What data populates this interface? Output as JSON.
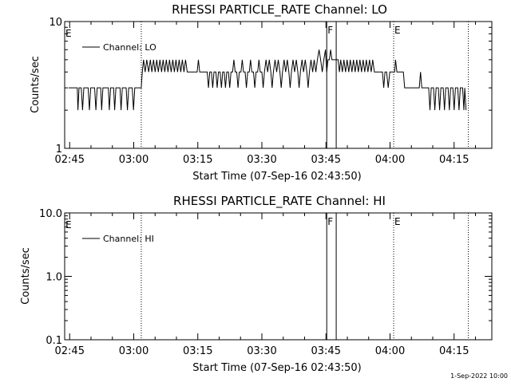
{
  "colors": {
    "background": "#ffffff",
    "foreground": "#000000"
  },
  "footer": {
    "date": "1-Sep-2022 10:00"
  },
  "chart_data": [
    {
      "type": "line",
      "title": "RHESSI PARTICLE_RATE Channel: LO",
      "xlabel": "Start Time (07-Sep-16 02:43:50)",
      "ylabel": "Counts/sec",
      "y_scale": "log",
      "ylim": [
        1,
        10
      ],
      "y_ticks": [
        {
          "value": 1,
          "label": "1"
        },
        {
          "value": 10,
          "label": "10"
        }
      ],
      "xlim": [
        "02:43:50",
        "04:23:50"
      ],
      "x_ticks": [
        "02:45",
        "03:00",
        "03:15",
        "03:30",
        "03:45",
        "04:00",
        "04:15"
      ],
      "legend": {
        "position": "top-left",
        "label": "Channel: LO"
      },
      "series": [
        {
          "name": "Channel: LO",
          "points": [
            [
              "02:44:44",
              3
            ],
            [
              "02:46:47",
              3
            ],
            [
              "02:46:56",
              2
            ],
            [
              "02:47:12",
              3
            ],
            [
              "02:47:43",
              3
            ],
            [
              "02:48:01",
              2
            ],
            [
              "02:48:19",
              3
            ],
            [
              "02:49:20",
              3
            ],
            [
              "02:49:38",
              2
            ],
            [
              "02:49:56",
              3
            ],
            [
              "02:50:51",
              3
            ],
            [
              "02:51:09",
              2
            ],
            [
              "02:51:27",
              3
            ],
            [
              "02:52:16",
              3
            ],
            [
              "02:52:29",
              2
            ],
            [
              "02:52:47",
              3
            ],
            [
              "02:54:03",
              3
            ],
            [
              "02:54:17",
              2
            ],
            [
              "02:54:35",
              3
            ],
            [
              "02:55:18",
              3
            ],
            [
              "02:55:32",
              2
            ],
            [
              "02:55:50",
              3
            ],
            [
              "02:56:47",
              3
            ],
            [
              "02:57:02",
              2
            ],
            [
              "02:57:20",
              3
            ],
            [
              "02:58:13",
              3
            ],
            [
              "02:58:31",
              2
            ],
            [
              "02:58:49",
              3
            ],
            [
              "02:59:39",
              3
            ],
            [
              "02:59:57",
              2
            ],
            [
              "03:00:15",
              3
            ],
            [
              "03:01:46",
              3
            ],
            [
              "03:02:00",
              4
            ],
            [
              "03:02:18",
              5
            ],
            [
              "03:02:40",
              4
            ],
            [
              "03:03:03",
              5
            ],
            [
              "03:03:30",
              4
            ],
            [
              "03:03:53",
              5
            ],
            [
              "03:04:15",
              4
            ],
            [
              "03:04:38",
              5
            ],
            [
              "03:05:01",
              4
            ],
            [
              "03:05:23",
              5
            ],
            [
              "03:05:46",
              4
            ],
            [
              "03:06:08",
              5
            ],
            [
              "03:06:31",
              4
            ],
            [
              "03:06:53",
              5
            ],
            [
              "03:07:16",
              4
            ],
            [
              "03:07:38",
              5
            ],
            [
              "03:08:01",
              4
            ],
            [
              "03:08:23",
              5
            ],
            [
              "03:08:46",
              4
            ],
            [
              "03:09:08",
              5
            ],
            [
              "03:09:31",
              4
            ],
            [
              "03:09:53",
              5
            ],
            [
              "03:10:16",
              4
            ],
            [
              "03:10:38",
              5
            ],
            [
              "03:11:01",
              4
            ],
            [
              "03:11:23",
              5
            ],
            [
              "03:11:46",
              4
            ],
            [
              "03:12:08",
              5
            ],
            [
              "03:12:31",
              4
            ],
            [
              "03:12:53",
              4
            ],
            [
              "03:14:51",
              4
            ],
            [
              "03:15:09",
              5
            ],
            [
              "03:15:27",
              4
            ],
            [
              "03:17:12",
              4
            ],
            [
              "03:17:30",
              3
            ],
            [
              "03:17:48",
              4
            ],
            [
              "03:18:11",
              4
            ],
            [
              "03:18:29",
              3
            ],
            [
              "03:18:47",
              4
            ],
            [
              "03:19:14",
              4
            ],
            [
              "03:19:32",
              3
            ],
            [
              "03:19:50",
              4
            ],
            [
              "03:20:13",
              4
            ],
            [
              "03:20:31",
              3
            ],
            [
              "03:20:49",
              4
            ],
            [
              "03:21:11",
              4
            ],
            [
              "03:21:29",
              3
            ],
            [
              "03:21:47",
              4
            ],
            [
              "03:22:10",
              4
            ],
            [
              "03:22:28",
              3
            ],
            [
              "03:22:46",
              4
            ],
            [
              "03:23:09",
              4
            ],
            [
              "03:23:27",
              5
            ],
            [
              "03:23:45",
              4
            ],
            [
              "03:24:07",
              4
            ],
            [
              "03:24:25",
              3
            ],
            [
              "03:24:43",
              4
            ],
            [
              "03:25:06",
              4
            ],
            [
              "03:25:24",
              5
            ],
            [
              "03:25:42",
              4
            ],
            [
              "03:26:05",
              4
            ],
            [
              "03:26:23",
              3
            ],
            [
              "03:26:41",
              4
            ],
            [
              "03:27:03",
              4
            ],
            [
              "03:27:21",
              5
            ],
            [
              "03:27:39",
              4
            ],
            [
              "03:28:02",
              4
            ],
            [
              "03:28:20",
              3
            ],
            [
              "03:28:38",
              4
            ],
            [
              "03:29:01",
              4
            ],
            [
              "03:29:19",
              5
            ],
            [
              "03:29:37",
              4
            ],
            [
              "03:30:00",
              4
            ],
            [
              "03:30:18",
              3
            ],
            [
              "03:30:36",
              4
            ],
            [
              "03:30:58",
              5
            ],
            [
              "03:31:21",
              4
            ],
            [
              "03:31:44",
              5
            ],
            [
              "03:32:06",
              4
            ],
            [
              "03:32:24",
              3
            ],
            [
              "03:32:42",
              4
            ],
            [
              "03:33:05",
              5
            ],
            [
              "03:33:28",
              4
            ],
            [
              "03:33:50",
              5
            ],
            [
              "03:34:13",
              4
            ],
            [
              "03:34:31",
              3
            ],
            [
              "03:34:49",
              4
            ],
            [
              "03:35:12",
              5
            ],
            [
              "03:35:34",
              4
            ],
            [
              "03:35:57",
              5
            ],
            [
              "03:36:19",
              4
            ],
            [
              "03:36:37",
              3
            ],
            [
              "03:36:55",
              4
            ],
            [
              "03:37:18",
              5
            ],
            [
              "03:37:40",
              4
            ],
            [
              "03:38:03",
              5
            ],
            [
              "03:38:25",
              4
            ],
            [
              "03:38:43",
              3
            ],
            [
              "03:39:01",
              4
            ],
            [
              "03:39:24",
              5
            ],
            [
              "03:39:46",
              4
            ],
            [
              "03:40:09",
              5
            ],
            [
              "03:40:31",
              4
            ],
            [
              "03:40:49",
              3
            ],
            [
              "03:41:07",
              4
            ],
            [
              "03:41:30",
              5
            ],
            [
              "03:41:53",
              4
            ],
            [
              "03:42:15",
              5
            ],
            [
              "03:42:38",
              4
            ],
            [
              "03:43:00",
              5
            ],
            [
              "03:43:23",
              6
            ],
            [
              "03:43:45",
              5
            ],
            [
              "03:44:08",
              4
            ],
            [
              "03:44:30",
              5
            ],
            [
              "03:44:53",
              6
            ],
            [
              "03:45:11",
              4
            ],
            [
              "03:45:29",
              5
            ],
            [
              "03:45:48",
              5
            ],
            [
              "03:46:06",
              6
            ],
            [
              "03:46:24",
              5
            ],
            [
              "03:47:51",
              5
            ],
            [
              "03:48:09",
              4
            ],
            [
              "03:48:27",
              5
            ],
            [
              "03:48:50",
              4
            ],
            [
              "03:49:12",
              5
            ],
            [
              "03:49:35",
              4
            ],
            [
              "03:49:57",
              5
            ],
            [
              "03:50:20",
              4
            ],
            [
              "03:50:42",
              5
            ],
            [
              "03:51:05",
              4
            ],
            [
              "03:51:27",
              5
            ],
            [
              "03:51:50",
              4
            ],
            [
              "03:52:12",
              5
            ],
            [
              "03:52:35",
              4
            ],
            [
              "03:52:57",
              5
            ],
            [
              "03:53:20",
              4
            ],
            [
              "03:53:42",
              5
            ],
            [
              "03:54:05",
              4
            ],
            [
              "03:54:27",
              5
            ],
            [
              "03:54:50",
              4
            ],
            [
              "03:55:12",
              5
            ],
            [
              "03:55:35",
              4
            ],
            [
              "03:55:57",
              5
            ],
            [
              "03:56:20",
              4
            ],
            [
              "03:56:42",
              4
            ],
            [
              "03:58:13",
              4
            ],
            [
              "03:58:31",
              3
            ],
            [
              "03:58:49",
              4
            ],
            [
              "03:59:12",
              4
            ],
            [
              "03:59:34",
              3
            ],
            [
              "03:59:57",
              4
            ],
            [
              "04:01:05",
              4
            ],
            [
              "04:01:18",
              5
            ],
            [
              "04:01:36",
              4
            ],
            [
              "04:03:07",
              4
            ],
            [
              "04:03:25",
              3
            ],
            [
              "04:06:51",
              3
            ],
            [
              "04:07:09",
              4
            ],
            [
              "04:07:27",
              3
            ],
            [
              "04:09:03",
              3
            ],
            [
              "04:09:21",
              2
            ],
            [
              "04:09:39",
              3
            ],
            [
              "04:10:11",
              3
            ],
            [
              "04:10:29",
              2
            ],
            [
              "04:10:47",
              3
            ],
            [
              "04:11:19",
              3
            ],
            [
              "04:11:37",
              2
            ],
            [
              "04:11:55",
              3
            ],
            [
              "04:12:27",
              3
            ],
            [
              "04:12:45",
              2
            ],
            [
              "04:13:03",
              3
            ],
            [
              "04:13:35",
              3
            ],
            [
              "04:13:53",
              2
            ],
            [
              "04:14:11",
              3
            ],
            [
              "04:14:43",
              3
            ],
            [
              "04:15:01",
              2
            ],
            [
              "04:15:19",
              3
            ],
            [
              "04:15:51",
              3
            ],
            [
              "04:16:09",
              2
            ],
            [
              "04:16:27",
              3
            ],
            [
              "04:16:59",
              3
            ],
            [
              "04:17:17",
              2
            ],
            [
              "04:17:30",
              3
            ],
            [
              "04:17:48",
              2
            ]
          ]
        }
      ],
      "markers": [
        {
          "kind": "dotted",
          "time": "03:01:46",
          "label": ""
        },
        {
          "kind": "solid",
          "time": "03:45:11",
          "label": "F"
        },
        {
          "kind": "solid",
          "time": "03:47:24",
          "label": ""
        },
        {
          "kind": "dotted",
          "time": "04:00:51",
          "label": "E"
        },
        {
          "kind": "dotted",
          "time": "04:18:20",
          "label": ""
        }
      ],
      "edge_label": "E"
    },
    {
      "type": "line",
      "title": "RHESSI PARTICLE_RATE Channel: HI",
      "xlabel": "Start Time (07-Sep-16 02:43:50)",
      "ylabel": "Counts/sec",
      "y_scale": "log",
      "ylim": [
        0.1,
        10
      ],
      "y_ticks": [
        {
          "value": 0.1,
          "label": "0.1"
        },
        {
          "value": 1,
          "label": "1.0"
        },
        {
          "value": 10,
          "label": "10.0"
        }
      ],
      "xlim": [
        "02:43:50",
        "04:23:50"
      ],
      "x_ticks": [
        "02:45",
        "03:00",
        "03:15",
        "03:30",
        "03:45",
        "04:00",
        "04:15"
      ],
      "legend": {
        "position": "top-left",
        "label": "Channel: HI"
      },
      "series": [
        {
          "name": "Channel: HI",
          "points": []
        }
      ],
      "markers": [
        {
          "kind": "dotted",
          "time": "03:01:46",
          "label": ""
        },
        {
          "kind": "solid",
          "time": "03:45:11",
          "label": "F"
        },
        {
          "kind": "solid",
          "time": "03:47:24",
          "label": ""
        },
        {
          "kind": "dotted",
          "time": "04:00:51",
          "label": "E"
        },
        {
          "kind": "dotted",
          "time": "04:18:20",
          "label": ""
        }
      ],
      "edge_label": "E"
    }
  ]
}
